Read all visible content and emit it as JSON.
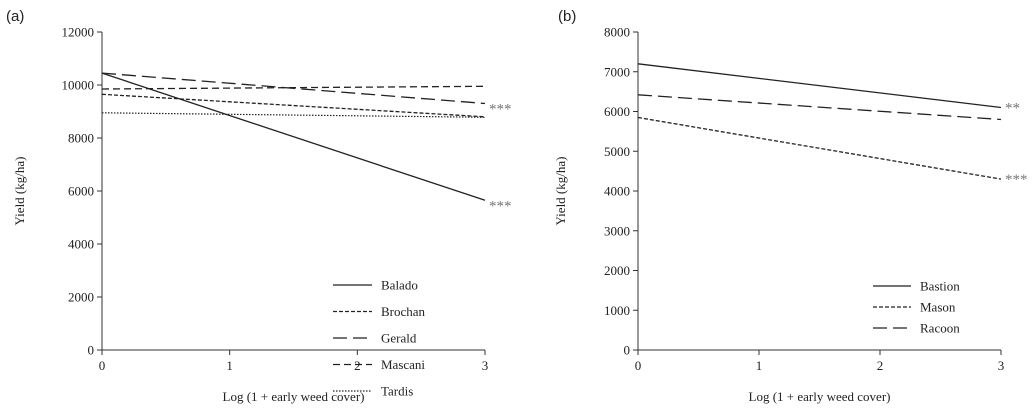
{
  "chart_data": [
    {
      "type": "line",
      "panel_label": "(a)",
      "xlabel": "Log (1 + early weed cover)",
      "ylabel": "Yield (kg/ha)",
      "xlim": [
        0,
        3
      ],
      "ylim": [
        0,
        12000
      ],
      "x_ticks": [
        "0",
        "1",
        "2",
        "3"
      ],
      "y_ticks": [
        "0",
        "2000",
        "4000",
        "6000",
        "8000",
        "10000",
        "12000"
      ],
      "grid": false,
      "legend_position": "bottom-right",
      "series": [
        {
          "name": "Balado",
          "x": [
            0,
            3
          ],
          "y": [
            10450,
            5650
          ],
          "style": "solid",
          "significance": "***"
        },
        {
          "name": "Brochan",
          "x": [
            0,
            3
          ],
          "y": [
            9650,
            8800
          ],
          "style": "short-dash",
          "significance": ""
        },
        {
          "name": "Gerald",
          "x": [
            0,
            3
          ],
          "y": [
            10450,
            9300
          ],
          "style": "long-dash",
          "significance": "***"
        },
        {
          "name": "Mascani",
          "x": [
            0,
            3
          ],
          "y": [
            9850,
            9950
          ],
          "style": "dash",
          "significance": ""
        },
        {
          "name": "Tardis",
          "x": [
            0,
            3
          ],
          "y": [
            8950,
            8780
          ],
          "style": "dotted",
          "significance": ""
        }
      ]
    },
    {
      "type": "line",
      "panel_label": "(b)",
      "xlabel": "Log (1 + early weed cover)",
      "ylabel": "Yield (kg/ha)",
      "xlim": [
        0,
        3
      ],
      "ylim": [
        0,
        8000
      ],
      "x_ticks": [
        "0",
        "1",
        "2",
        "3"
      ],
      "y_ticks": [
        "0",
        "1000",
        "2000",
        "3000",
        "4000",
        "5000",
        "6000",
        "7000",
        "8000"
      ],
      "grid": false,
      "legend_position": "bottom-right",
      "series": [
        {
          "name": "Bastion",
          "x": [
            0,
            3
          ],
          "y": [
            7200,
            6100
          ],
          "style": "solid",
          "significance": "**"
        },
        {
          "name": "Mason",
          "x": [
            0,
            3
          ],
          "y": [
            5850,
            4300
          ],
          "style": "short-dash",
          "significance": "***"
        },
        {
          "name": "Racoon",
          "x": [
            0,
            3
          ],
          "y": [
            6420,
            5800
          ],
          "style": "long-dash",
          "significance": ""
        }
      ]
    }
  ]
}
